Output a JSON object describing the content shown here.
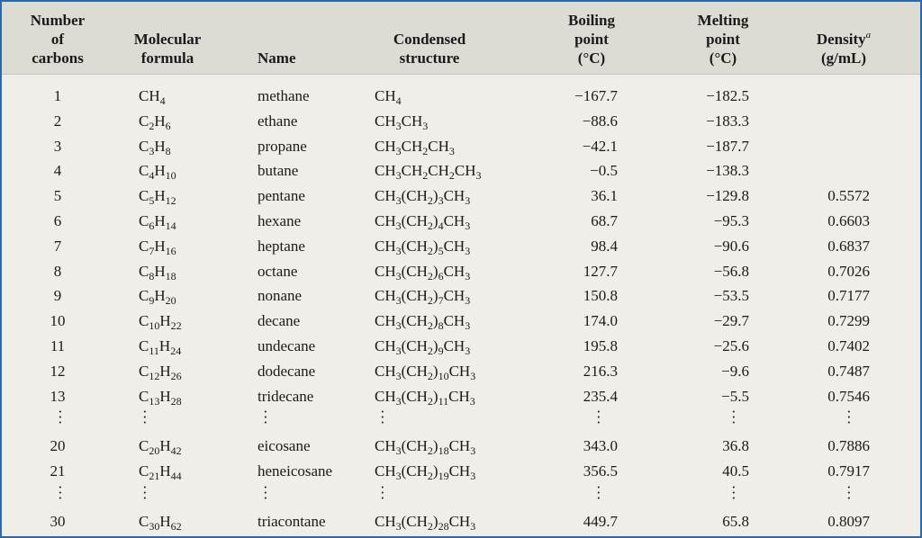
{
  "headers": {
    "carbons": [
      "Number",
      "of",
      "carbons"
    ],
    "formula": [
      "Molecular",
      "formula"
    ],
    "name": "Name",
    "structure": [
      "Condensed",
      "structure"
    ],
    "boiling": [
      "Boiling",
      "point",
      "(°C)"
    ],
    "melting": [
      "Melting",
      "point",
      "(°C)"
    ],
    "density_label": "Density",
    "density_footnote": "a",
    "density_unit": "(g/mL)"
  },
  "rows": [
    {
      "n": "1",
      "formula": "CH4",
      "name": "methane",
      "structure": "CH4",
      "bp": "−167.7",
      "mp": "−182.5",
      "d": ""
    },
    {
      "n": "2",
      "formula": "C2H6",
      "name": "ethane",
      "structure": "CH3CH3",
      "bp": "−88.6",
      "mp": "−183.3",
      "d": ""
    },
    {
      "n": "3",
      "formula": "C3H8",
      "name": "propane",
      "structure": "CH3CH2CH3",
      "bp": "−42.1",
      "mp": "−187.7",
      "d": ""
    },
    {
      "n": "4",
      "formula": "C4H10",
      "name": "butane",
      "structure": "CH3CH2CH2CH3",
      "bp": "−0.5",
      "mp": "−138.3",
      "d": ""
    },
    {
      "n": "5",
      "formula": "C5H12",
      "name": "pentane",
      "structure": "CH3(CH2)3CH3",
      "bp": "36.1",
      "mp": "−129.8",
      "d": "0.5572"
    },
    {
      "n": "6",
      "formula": "C6H14",
      "name": "hexane",
      "structure": "CH3(CH2)4CH3",
      "bp": "68.7",
      "mp": "−95.3",
      "d": "0.6603"
    },
    {
      "n": "7",
      "formula": "C7H16",
      "name": "heptane",
      "structure": "CH3(CH2)5CH3",
      "bp": "98.4",
      "mp": "−90.6",
      "d": "0.6837"
    },
    {
      "n": "8",
      "formula": "C8H18",
      "name": "octane",
      "structure": "CH3(CH2)6CH3",
      "bp": "127.7",
      "mp": "−56.8",
      "d": "0.7026"
    },
    {
      "n": "9",
      "formula": "C9H20",
      "name": "nonane",
      "structure": "CH3(CH2)7CH3",
      "bp": "150.8",
      "mp": "−53.5",
      "d": "0.7177"
    },
    {
      "n": "10",
      "formula": "C10H22",
      "name": "decane",
      "structure": "CH3(CH2)8CH3",
      "bp": "174.0",
      "mp": "−29.7",
      "d": "0.7299"
    },
    {
      "n": "11",
      "formula": "C11H24",
      "name": "undecane",
      "structure": "CH3(CH2)9CH3",
      "bp": "195.8",
      "mp": "−25.6",
      "d": "0.7402"
    },
    {
      "n": "12",
      "formula": "C12H26",
      "name": "dodecane",
      "structure": "CH3(CH2)10CH3",
      "bp": "216.3",
      "mp": "−9.6",
      "d": "0.7487"
    },
    {
      "n": "13",
      "formula": "C13H28",
      "name": "tridecane",
      "structure": "CH3(CH2)11CH3",
      "bp": "235.4",
      "mp": "−5.5",
      "d": "0.7546"
    },
    {
      "ellipsis": true
    },
    {
      "n": "20",
      "formula": "C20H42",
      "name": "eicosane",
      "structure": "CH3(CH2)18CH3",
      "bp": "343.0",
      "mp": "36.8",
      "d": "0.7886"
    },
    {
      "n": "21",
      "formula": "C21H44",
      "name": "heneicosane",
      "structure": "CH3(CH2)19CH3",
      "bp": "356.5",
      "mp": "40.5",
      "d": "0.7917"
    },
    {
      "ellipsis": true
    },
    {
      "n": "30",
      "formula": "C30H62",
      "name": "triacontane",
      "structure": "CH3(CH2)28CH3",
      "bp": "449.7",
      "mp": "65.8",
      "d": "0.8097"
    }
  ]
}
